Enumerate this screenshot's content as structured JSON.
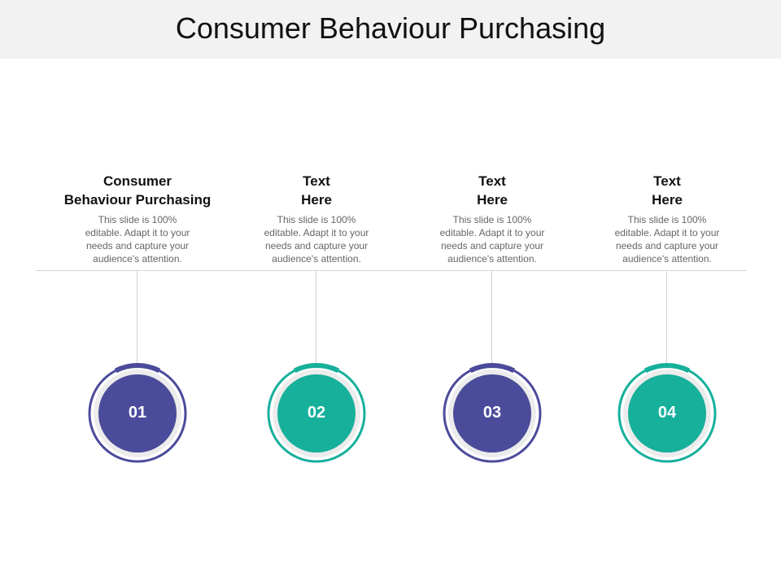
{
  "title": "Consumer Behaviour Purchasing",
  "colors": {
    "purple": "#4b4b9b",
    "teal": "#16b09b"
  },
  "steps": [
    {
      "number": "01",
      "heading_lines": [
        "Consumer",
        "Behaviour Purchasing"
      ],
      "description_lines": [
        "This slide is 100%",
        "editable. Adapt it to your",
        "needs and capture your",
        "audience's attention."
      ],
      "color": "#4b4b9b"
    },
    {
      "number": "02",
      "heading_lines": [
        "Text",
        "Here"
      ],
      "description_lines": [
        "This slide is 100%",
        "editable. Adapt it to your",
        "needs and capture your",
        "audience's attention."
      ],
      "color": "#16b09b"
    },
    {
      "number": "03",
      "heading_lines": [
        "Text",
        "Here"
      ],
      "description_lines": [
        "This slide is 100%",
        "editable. Adapt it to your",
        "needs and capture your",
        "audience's attention."
      ],
      "color": "#4b4b9b"
    },
    {
      "number": "04",
      "heading_lines": [
        "Text",
        "Here"
      ],
      "description_lines": [
        "This slide is 100%",
        "editable. Adapt it to your",
        "needs and capture your",
        "audience's attention."
      ],
      "color": "#16b09b"
    }
  ]
}
